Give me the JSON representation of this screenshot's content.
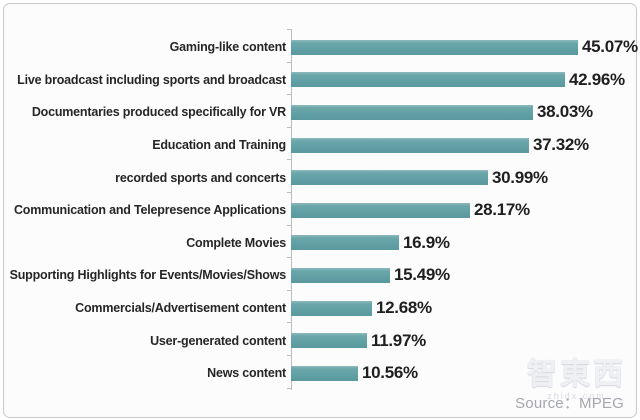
{
  "chart_data": {
    "type": "bar",
    "orientation": "horizontal",
    "title": "",
    "xlabel": "",
    "ylabel": "",
    "categories": [
      "Gaming-like content",
      "Live broadcast including sports and broadcast",
      "Documentaries produced specifically for VR",
      "Education and Training",
      "recorded sports and concerts",
      "Communication and Telepresence Applications",
      "Complete Movies",
      "Supporting Highlights for Events/Movies/Shows",
      "Commercials/Advertisement content",
      "User-generated content",
      "News content"
    ],
    "values": [
      45.07,
      42.96,
      38.03,
      37.32,
      30.99,
      28.17,
      16.9,
      15.49,
      12.68,
      11.97,
      10.56
    ],
    "value_labels": [
      "45.07%",
      "42.96%",
      "38.03%",
      "37.32%",
      "30.99%",
      "28.17%",
      "16.9%",
      "15.49%",
      "12.68%",
      "11.97%",
      "10.56%"
    ],
    "xlim": [
      0,
      50
    ],
    "grid": false,
    "legend": false,
    "bar_color": "#63a2a5",
    "axis_color": "#b9bdc4"
  },
  "footer": {
    "source": "Source：MPEG"
  },
  "watermark": {
    "logo_text": "智東西",
    "caption": "zhidx.com"
  }
}
